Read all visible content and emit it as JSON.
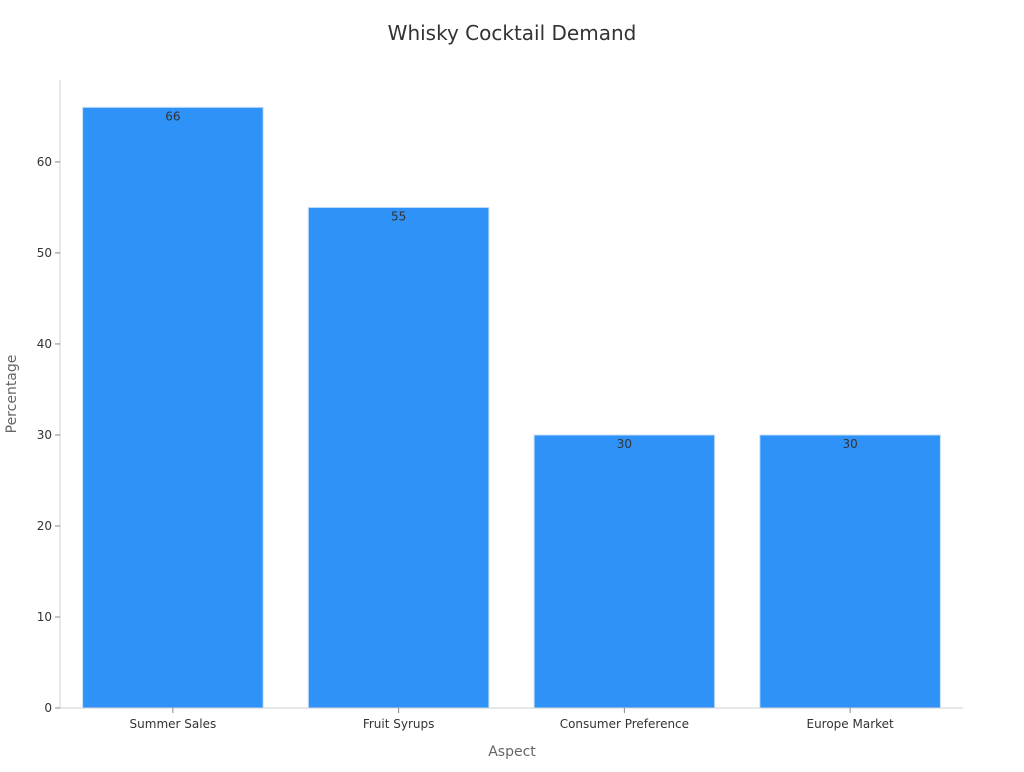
{
  "chart_data": {
    "type": "bar",
    "title": "Whisky Cocktail Demand",
    "xlabel": "Aspect",
    "ylabel": "Percentage",
    "categories": [
      "Summer Sales",
      "Fruit Syrups",
      "Consumer Preference",
      "Europe Market"
    ],
    "values": [
      66,
      55,
      30,
      30
    ],
    "data_labels": [
      "66",
      "55",
      "30",
      "30"
    ],
    "ylim": [
      0,
      69
    ],
    "yticks": [
      0,
      10,
      20,
      30,
      40,
      50,
      60
    ],
    "grid": false,
    "legend": "none",
    "colors": {
      "bar": "#2F92F8",
      "bar_edge": "#C9E1FA",
      "axis": "#D0D0D0",
      "label": "#333333",
      "axis_title": "#666666"
    }
  }
}
